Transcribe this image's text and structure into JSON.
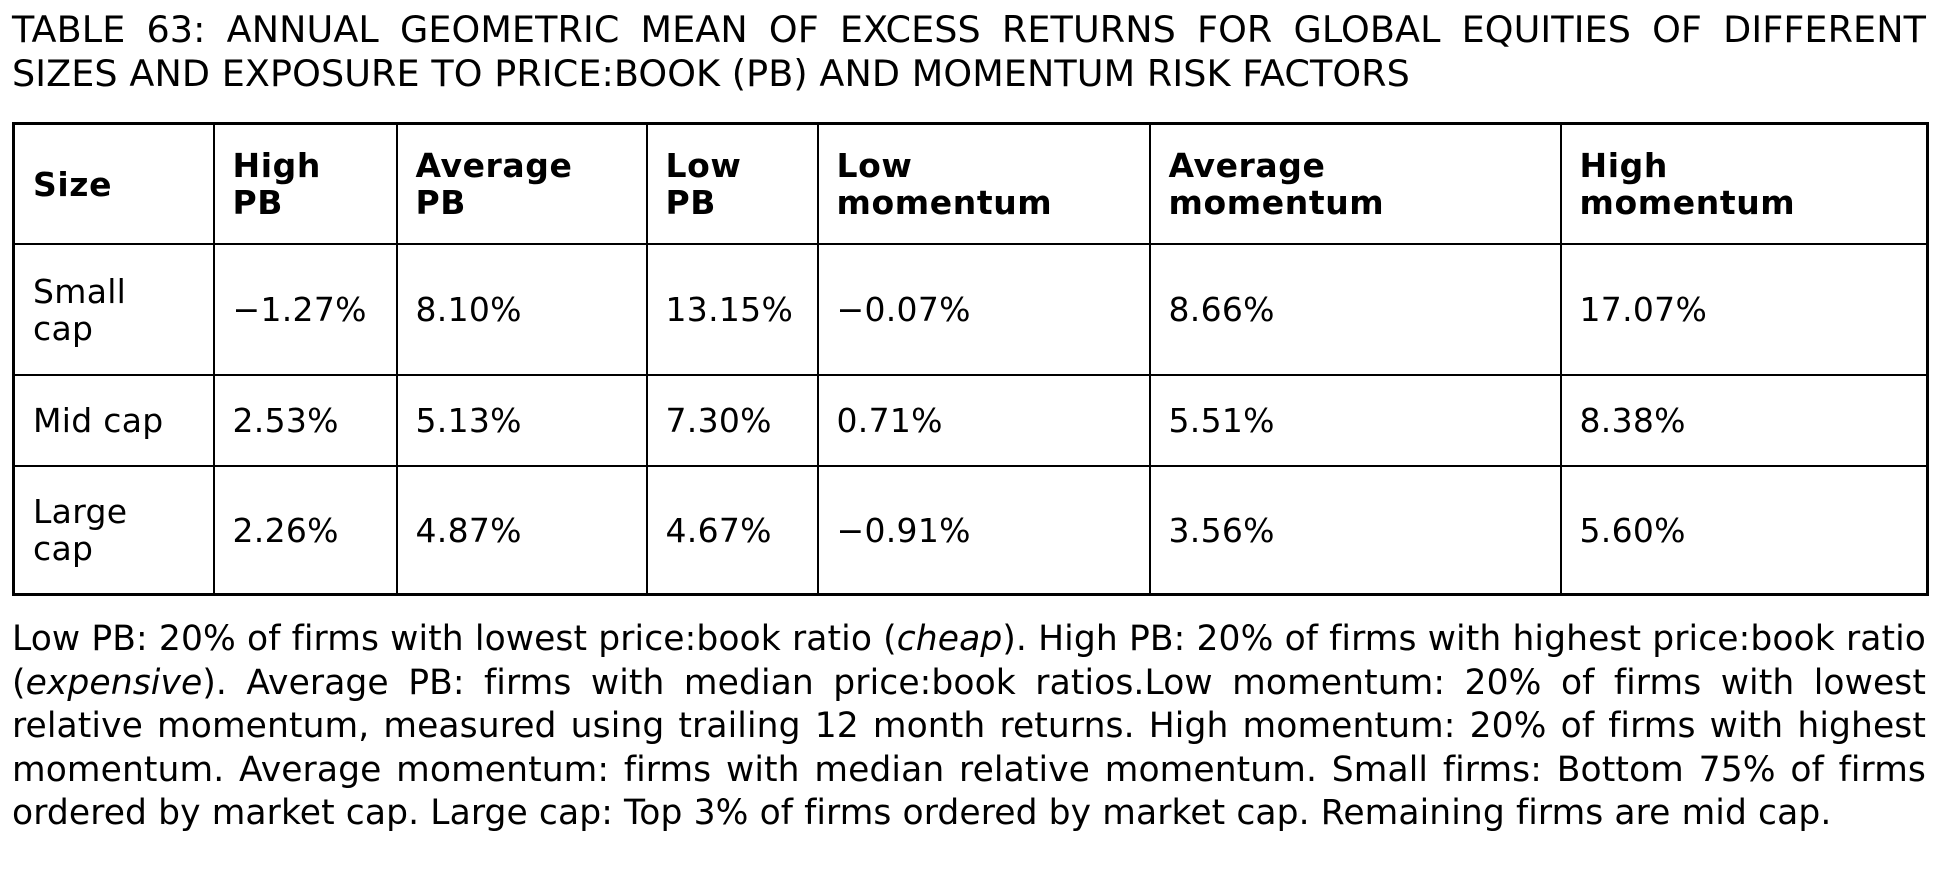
{
  "caption": "TABLE 63: ANNUAL GEOMETRIC MEAN OF EXCESS RETURNS FOR GLOBAL EQUITIES OF DIFFERENT SIZES AND EXPOSURE TO PRICE:BOOK (PB) AND MOMENTUM RISK FACTORS",
  "table": {
    "headers": [
      "Size",
      "High PB",
      "Average PB",
      "Low PB",
      "Low momentum",
      "Average momentum",
      "High momentum"
    ],
    "rows": [
      [
        "Small cap",
        "−1.27%",
        "8.10%",
        "13.15%",
        "−0.07%",
        "8.66%",
        "17.07%"
      ],
      [
        "Mid cap",
        "2.53%",
        "5.13%",
        "7.30%",
        "0.71%",
        "5.51%",
        "8.38%"
      ],
      [
        "Large cap",
        "2.26%",
        "4.87%",
        "4.67%",
        "−0.91%",
        "3.56%",
        "5.60%"
      ]
    ]
  },
  "footnote": {
    "part1": "Low PB: 20% of firms with lowest price:book ratio (",
    "em1": "cheap",
    "part2": "). High PB: 20% of firms with highest price:book ratio (",
    "em2": "expensive",
    "part3": "). Average PB: firms with median price:book ratios.Low momentum: 20% of firms with lowest relative momentum, measured using trailing 12 month returns. High momentum: 20% of firms with highest momentum. Average momentum: firms with median relative momentum. Small firms: Bottom 75% of firms ordered by market cap. Large cap: Top 3% of firms ordered by market cap. Remaining firms are mid cap."
  }
}
